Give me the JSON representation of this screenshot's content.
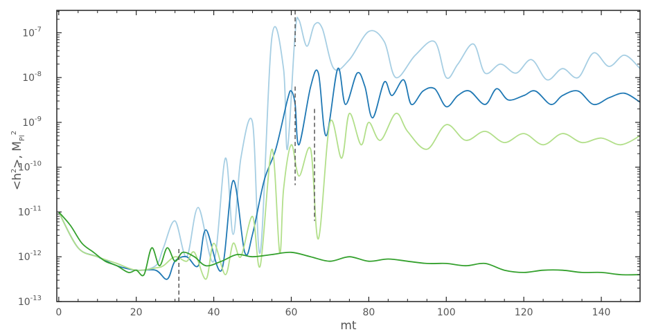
{
  "chart_data": {
    "type": "line",
    "title": "",
    "xlabel": "mt",
    "ylabel": {
      "base": "<h",
      "sup1": "2",
      "mid": ">, M",
      "sub": "Pl",
      "sup2": "2"
    },
    "xlim": [
      -0.5,
      150
    ],
    "ylim_log10": [
      -13,
      -6.5
    ],
    "yscale": "log",
    "x_ticks": [
      0,
      20,
      40,
      60,
      80,
      100,
      120,
      140
    ],
    "x_tick_labels": [
      "0",
      "20",
      "40",
      "60",
      "80",
      "100",
      "120",
      "140"
    ],
    "y_ticks_exp": [
      -13,
      -12,
      -11,
      -10,
      -9,
      -8,
      -7
    ],
    "y_tick_labels": [
      {
        "base": "10",
        "exp": "-13"
      },
      {
        "base": "10",
        "exp": "-12"
      },
      {
        "base": "10",
        "exp": "-11"
      },
      {
        "base": "10",
        "exp": "-10"
      },
      {
        "base": "10",
        "exp": "-9"
      },
      {
        "base": "10",
        "exp": "-8"
      },
      {
        "base": "10",
        "exp": "-7"
      }
    ],
    "grid": false,
    "series": [
      {
        "color": "#a6cee3",
        "x": [
          0,
          5,
          10,
          15,
          20,
          25,
          27,
          30,
          33,
          36,
          40,
          43,
          45,
          47,
          50,
          52,
          55,
          58,
          59,
          61,
          62,
          64,
          66,
          68,
          71,
          75,
          80,
          84,
          87,
          92,
          97,
          100,
          103,
          107,
          110,
          114,
          118,
          122,
          126,
          130,
          134,
          138,
          142,
          146,
          150
        ],
        "y_log10": [
          -11.0,
          -11.8,
          -12.0,
          -12.15,
          -12.3,
          -12.2,
          -11.8,
          -11.2,
          -12.0,
          -10.9,
          -12.1,
          -9.8,
          -11.5,
          -9.8,
          -9.0,
          -11.9,
          -7.1,
          -7.8,
          -9.6,
          -7.0,
          -6.72,
          -7.3,
          -6.82,
          -6.9,
          -7.8,
          -7.6,
          -6.97,
          -7.2,
          -8.0,
          -7.5,
          -7.2,
          -8.0,
          -7.7,
          -7.25,
          -7.9,
          -7.7,
          -7.9,
          -7.6,
          -8.05,
          -7.8,
          -8.0,
          -7.45,
          -7.75,
          -7.5,
          -7.8
        ]
      },
      {
        "color": "#1f78b4",
        "x": [
          0,
          5,
          10,
          15,
          20,
          25,
          28,
          30,
          33,
          36,
          38,
          42,
          45,
          48,
          50,
          53,
          56,
          59,
          60,
          61,
          62,
          65,
          67,
          69,
          72,
          74,
          77,
          79,
          81,
          84,
          86,
          89,
          91,
          94,
          97,
          100,
          103,
          106,
          110,
          113,
          116,
          120,
          123,
          127,
          130,
          134,
          138,
          142,
          146,
          150
        ],
        "y_log10": [
          -11.0,
          -11.8,
          -12.0,
          -12.2,
          -12.3,
          -12.3,
          -12.5,
          -12.1,
          -12.0,
          -12.2,
          -11.4,
          -12.3,
          -10.3,
          -11.9,
          -11.5,
          -10.3,
          -9.6,
          -8.5,
          -8.3,
          -8.6,
          -9.5,
          -8.2,
          -7.9,
          -9.3,
          -7.8,
          -8.6,
          -7.9,
          -8.2,
          -8.9,
          -8.1,
          -8.4,
          -8.05,
          -8.6,
          -8.3,
          -8.25,
          -8.65,
          -8.4,
          -8.3,
          -8.6,
          -8.25,
          -8.5,
          -8.4,
          -8.3,
          -8.6,
          -8.4,
          -8.3,
          -8.6,
          -8.45,
          -8.35,
          -8.55
        ]
      },
      {
        "color": "#b2df8a",
        "x": [
          0,
          5,
          10,
          15,
          20,
          25,
          27,
          30,
          33,
          35,
          38,
          40,
          43,
          45,
          47,
          50,
          52,
          55,
          57,
          58,
          60,
          62,
          65,
          67,
          70,
          73,
          75,
          78,
          80,
          83,
          87,
          90,
          95,
          100,
          105,
          110,
          115,
          120,
          125,
          130,
          135,
          140,
          145,
          150
        ],
        "y_log10": [
          -11.0,
          -11.8,
          -12.0,
          -12.15,
          -12.3,
          -12.25,
          -12.2,
          -12.0,
          -12.1,
          -11.9,
          -12.5,
          -11.7,
          -12.4,
          -11.7,
          -12.0,
          -11.1,
          -12.2,
          -9.6,
          -11.9,
          -10.5,
          -9.5,
          -10.2,
          -9.6,
          -11.6,
          -9.0,
          -9.8,
          -8.8,
          -9.5,
          -9.0,
          -9.4,
          -8.8,
          -9.2,
          -9.6,
          -9.05,
          -9.4,
          -9.2,
          -9.45,
          -9.25,
          -9.5,
          -9.25,
          -9.45,
          -9.35,
          -9.5,
          -9.3
        ]
      },
      {
        "color": "#33a02c",
        "x": [
          0,
          3,
          6,
          9,
          12,
          15,
          18,
          20,
          22,
          24,
          26,
          28,
          30,
          32,
          35,
          38,
          42,
          46,
          50,
          55,
          60,
          65,
          70,
          75,
          80,
          85,
          90,
          95,
          100,
          105,
          110,
          115,
          120,
          125,
          130,
          135,
          140,
          145,
          150
        ],
        "y_log10": [
          -11.0,
          -11.3,
          -11.7,
          -11.9,
          -12.1,
          -12.2,
          -12.35,
          -12.3,
          -12.4,
          -11.8,
          -12.2,
          -11.8,
          -12.1,
          -11.9,
          -12.0,
          -12.2,
          -12.1,
          -11.95,
          -12.0,
          -11.95,
          -11.9,
          -12.0,
          -12.1,
          -12.0,
          -12.1,
          -12.05,
          -12.1,
          -12.15,
          -12.15,
          -12.2,
          -12.15,
          -12.3,
          -12.35,
          -12.3,
          -12.3,
          -12.35,
          -12.35,
          -12.4,
          -12.4
        ]
      }
    ],
    "markers": [
      {
        "x": 31,
        "y_log10_range": [
          -13,
          -11.8
        ],
        "color": "#555555"
      },
      {
        "x": 61,
        "y_log10_range": [
          -6.5,
          -7.3
        ],
        "color": "#555555"
      },
      {
        "x": 61,
        "y_log10_range": [
          -8.2,
          -10.4
        ],
        "color": "#555555"
      },
      {
        "x": 66,
        "y_log10_range": [
          -8.7,
          -11.2
        ],
        "color": "#555555"
      }
    ]
  }
}
